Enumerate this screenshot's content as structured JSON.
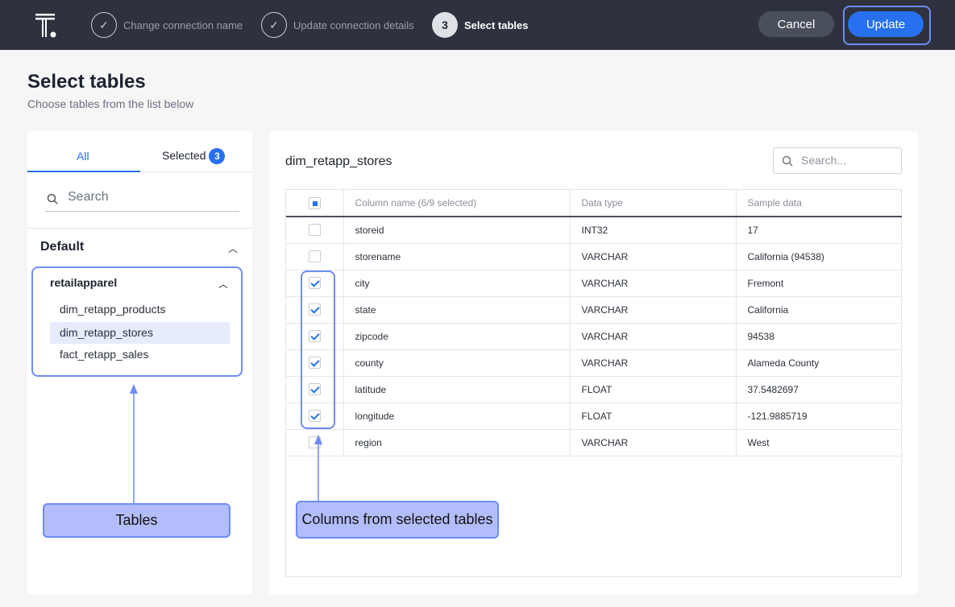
{
  "header": {
    "steps": [
      {
        "label": "Change connection name",
        "state": "done"
      },
      {
        "label": "Update connection details",
        "state": "done"
      },
      {
        "number": "3",
        "label": "Select tables",
        "state": "current"
      }
    ],
    "cancel_label": "Cancel",
    "update_label": "Update"
  },
  "page": {
    "title": "Select tables",
    "subtitle": "Choose tables from the list below"
  },
  "left": {
    "tabs": {
      "all": "All",
      "selected": "Selected",
      "selected_count": "3"
    },
    "search_placeholder": "Search",
    "group": "Default",
    "database": "retailapparel",
    "tables": [
      "dim_retapp_products",
      "dim_retapp_stores",
      "fact_retapp_sales"
    ],
    "selected_table": "dim_retapp_stores"
  },
  "right": {
    "title": "dim_retapp_stores",
    "search_placeholder": "Search...",
    "headers": [
      "Column name (6/9 selected)",
      "Data type",
      "Sample data"
    ],
    "rows": [
      {
        "name": "storeid",
        "type": "INT32",
        "sample": "17",
        "checked": false
      },
      {
        "name": "storename",
        "type": "VARCHAR",
        "sample": "California (94538)",
        "checked": false
      },
      {
        "name": "city",
        "type": "VARCHAR",
        "sample": "Fremont",
        "checked": true
      },
      {
        "name": "state",
        "type": "VARCHAR",
        "sample": "California",
        "checked": true
      },
      {
        "name": "zipcode",
        "type": "VARCHAR",
        "sample": "94538",
        "checked": true
      },
      {
        "name": "county",
        "type": "VARCHAR",
        "sample": "Alameda County",
        "checked": true
      },
      {
        "name": "latitude",
        "type": "FLOAT",
        "sample": "37.5482697",
        "checked": true
      },
      {
        "name": "longitude",
        "type": "FLOAT",
        "sample": "-121.9885719",
        "checked": true
      },
      {
        "name": "region",
        "type": "VARCHAR",
        "sample": "West",
        "checked": false
      }
    ]
  },
  "annotations": {
    "tables": "Tables",
    "columns": "Columns from selected tables"
  },
  "colors": {
    "header_bg": "#2e323e",
    "accent": "#2770ef",
    "callout": "#b3bdfb"
  }
}
